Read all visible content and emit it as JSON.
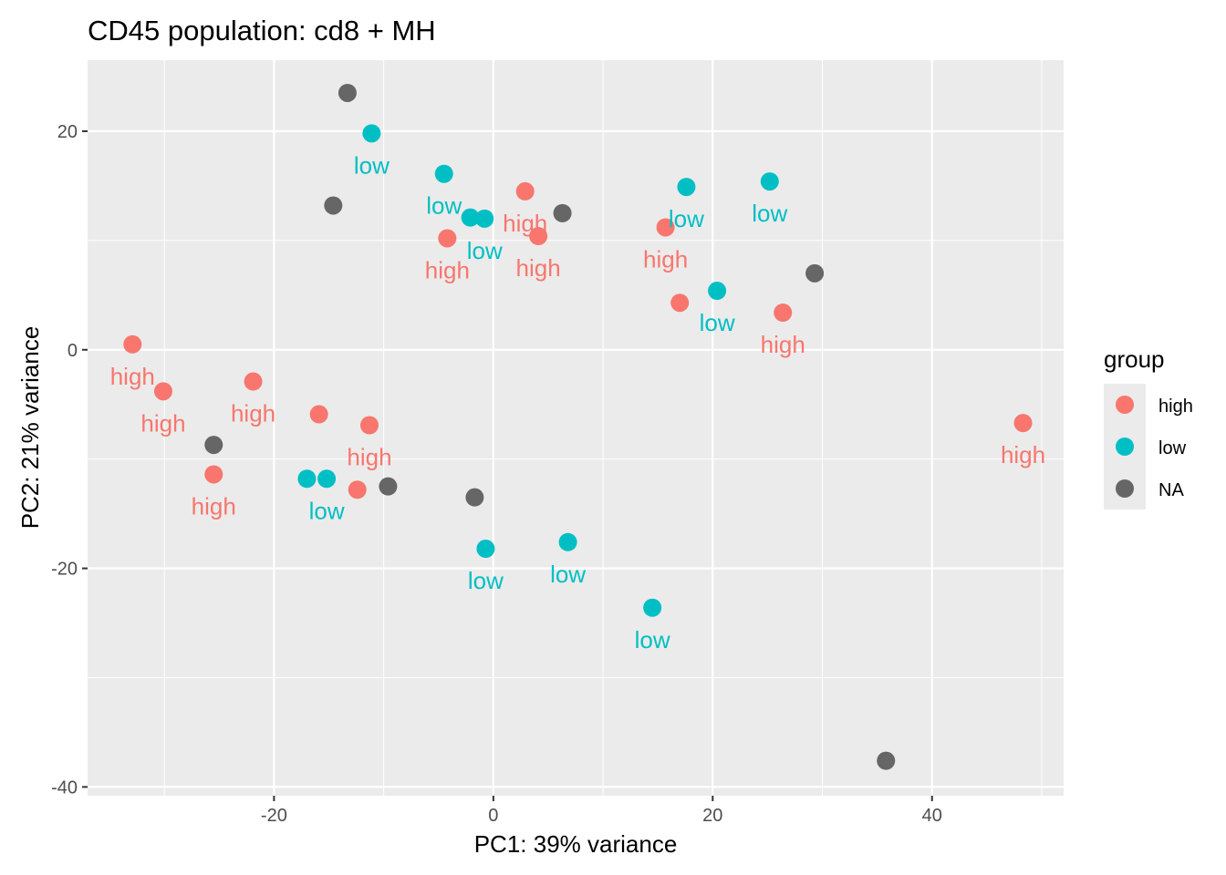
{
  "chart_data": {
    "type": "scatter",
    "title": "CD45 population: cd8 + MH",
    "xlabel": "PC1: 39% variance",
    "ylabel": "PC2: 21% variance",
    "xlim": [
      -37,
      52
    ],
    "ylim": [
      -40.8,
      26.5
    ],
    "x_ticks": [
      -20,
      0,
      20,
      40
    ],
    "y_ticks": [
      -40,
      -20,
      0,
      20
    ],
    "x_tick_labels": [
      "-20",
      "0",
      "20",
      "40"
    ],
    "y_tick_labels": [
      "-40",
      "-20",
      "0",
      "20"
    ],
    "grid": true,
    "legend": {
      "title": "group",
      "position": "right",
      "entries": [
        {
          "label": "high",
          "color": "#F8766D"
        },
        {
          "label": "low",
          "color": "#00BFC4"
        },
        {
          "label": "NA",
          "color": "#666666"
        }
      ]
    },
    "colors": {
      "high": "#F8766D",
      "low": "#00BFC4",
      "NA": "#666666"
    },
    "points": [
      {
        "x": -13.3,
        "y": 23.5,
        "group": "NA",
        "label": ""
      },
      {
        "x": -11.1,
        "y": 19.8,
        "group": "low",
        "label": "low"
      },
      {
        "x": -14.6,
        "y": 13.2,
        "group": "NA",
        "label": ""
      },
      {
        "x": -4.5,
        "y": 16.1,
        "group": "low",
        "label": "low"
      },
      {
        "x": -2.1,
        "y": 12.1,
        "group": "low",
        "label": ""
      },
      {
        "x": -0.8,
        "y": 12.0,
        "group": "low",
        "label": "low"
      },
      {
        "x": 2.9,
        "y": 14.5,
        "group": "high",
        "label": "high"
      },
      {
        "x": 6.3,
        "y": 12.5,
        "group": "NA",
        "label": ""
      },
      {
        "x": -4.2,
        "y": 10.2,
        "group": "high",
        "label": "high"
      },
      {
        "x": 4.1,
        "y": 10.4,
        "group": "high",
        "label": "high"
      },
      {
        "x": 15.7,
        "y": 11.2,
        "group": "high",
        "label": "high"
      },
      {
        "x": 17.6,
        "y": 14.9,
        "group": "low",
        "label": "low"
      },
      {
        "x": 25.2,
        "y": 15.4,
        "group": "low",
        "label": "low"
      },
      {
        "x": 29.3,
        "y": 7.0,
        "group": "NA",
        "label": ""
      },
      {
        "x": 17.0,
        "y": 4.3,
        "group": "high",
        "label": ""
      },
      {
        "x": 20.4,
        "y": 5.4,
        "group": "low",
        "label": "low"
      },
      {
        "x": 26.4,
        "y": 3.4,
        "group": "high",
        "label": "high"
      },
      {
        "x": -32.9,
        "y": 0.5,
        "group": "high",
        "label": "high"
      },
      {
        "x": -30.1,
        "y": -3.8,
        "group": "high",
        "label": "high"
      },
      {
        "x": -21.9,
        "y": -2.9,
        "group": "high",
        "label": "high"
      },
      {
        "x": -25.5,
        "y": -8.7,
        "group": "NA",
        "label": ""
      },
      {
        "x": -25.5,
        "y": -11.4,
        "group": "high",
        "label": "high"
      },
      {
        "x": -15.9,
        "y": -5.9,
        "group": "high",
        "label": ""
      },
      {
        "x": -11.3,
        "y": -6.9,
        "group": "high",
        "label": "high"
      },
      {
        "x": -17.0,
        "y": -11.8,
        "group": "low",
        "label": ""
      },
      {
        "x": -15.2,
        "y": -11.8,
        "group": "low",
        "label": "low"
      },
      {
        "x": -12.4,
        "y": -12.8,
        "group": "high",
        "label": ""
      },
      {
        "x": -9.6,
        "y": -12.5,
        "group": "NA",
        "label": ""
      },
      {
        "x": -1.7,
        "y": -13.5,
        "group": "NA",
        "label": ""
      },
      {
        "x": -0.7,
        "y": -18.2,
        "group": "low",
        "label": "low"
      },
      {
        "x": 6.8,
        "y": -17.6,
        "group": "low",
        "label": "low"
      },
      {
        "x": 14.5,
        "y": -23.6,
        "group": "low",
        "label": "low"
      },
      {
        "x": 48.3,
        "y": -6.7,
        "group": "high",
        "label": "high"
      },
      {
        "x": 35.8,
        "y": -37.6,
        "group": "NA",
        "label": ""
      }
    ]
  }
}
